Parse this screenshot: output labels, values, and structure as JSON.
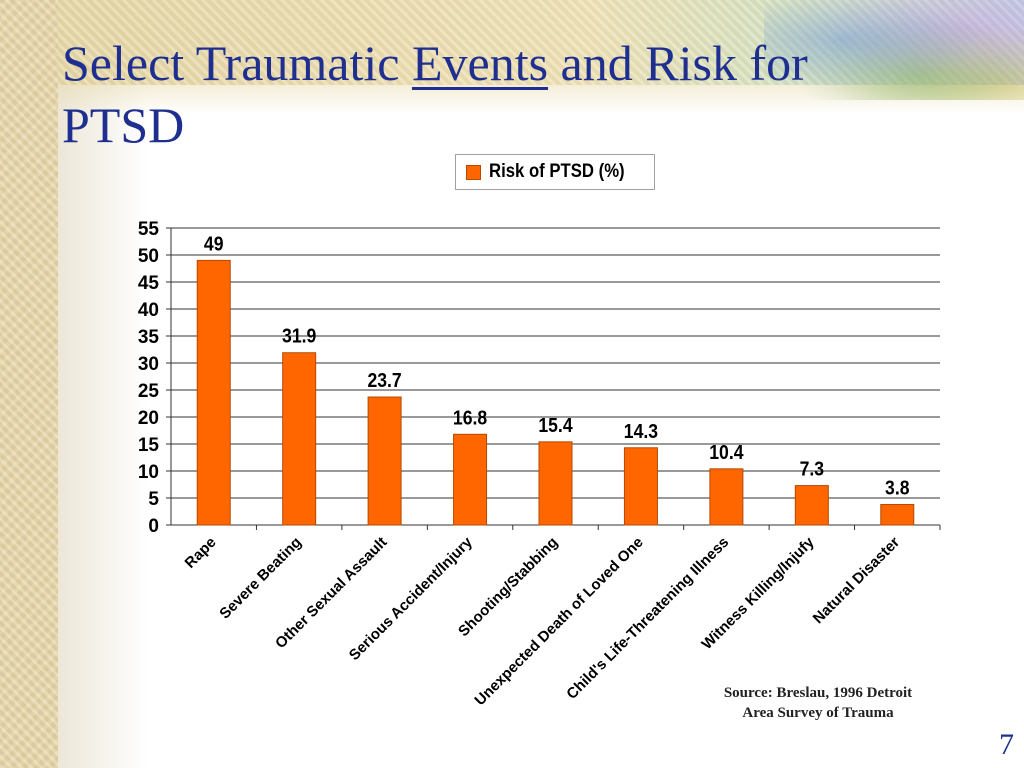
{
  "slide": {
    "title_part1": "Select Traumatic ",
    "title_emphasis": "Events",
    "title_part2": " and Risk for PTSD",
    "source_line1": "Source: Breslau, 1996 Detroit",
    "source_line2": "Area Survey of Trauma",
    "page_number": "7"
  },
  "chart_data": {
    "type": "bar",
    "categories": [
      "Rape",
      "Severe Beating",
      "Other Sexual Assault",
      "Serious Accident/Injury",
      "Shooting/Stabbing",
      "Unexpected Death of Loved One",
      "Child's Life-Threatening Illness",
      "Witness Killing/Injufy",
      "Natural Disaster"
    ],
    "series": [
      {
        "name": "Risk of PTSD (%)",
        "values": [
          49,
          31.9,
          23.7,
          16.8,
          15.4,
          14.3,
          10.4,
          7.3,
          3.8
        ],
        "color": "#ff6600"
      }
    ],
    "data_labels": [
      "49",
      "31.9",
      "23.7",
      "16.8",
      "15.4",
      "14.3",
      "10.4",
      "7.3",
      "3.8"
    ],
    "yticks": [
      0,
      5,
      10,
      15,
      20,
      25,
      30,
      35,
      40,
      45,
      50,
      55
    ],
    "ylim": [
      0,
      55
    ],
    "grid": true,
    "legend_position": "top"
  }
}
